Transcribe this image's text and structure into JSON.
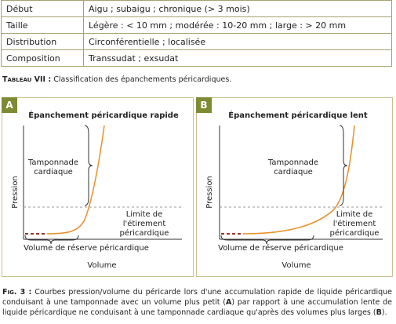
{
  "table": {
    "rows": [
      [
        "Début",
        "Aigu ; subaigu ; chronique (> 3 mois)"
      ],
      [
        "Taille",
        "Légère : < 10 mm ; modérée : 10-20 mm ; large : > 20 mm"
      ],
      [
        "Distribution",
        "Circonférentielle ; localisée"
      ],
      [
        "Composition",
        "Transsudat ; exsudat"
      ]
    ],
    "caption": {
      "label": "Tableau VII :",
      "text": "Classification des épanchements péricardiques."
    }
  },
  "figure": {
    "panels": [
      {
        "label": "A",
        "title": "Épanchement péricardique rapide",
        "y_label": "Pression",
        "x_label": "Volume",
        "tamponade": [
          "Tamponnade",
          "cardiaque"
        ],
        "limit": [
          "Limite de",
          "l'étirement",
          "péricardique"
        ],
        "reserve": "Volume de réserve péricardique"
      },
      {
        "label": "B",
        "title": "Épanchement péricardique lent",
        "y_label": "Pression",
        "x_label": "Volume",
        "tamponade": [
          "Tamponnade",
          "cardiaque"
        ],
        "limit": [
          "Limite de",
          "l'étirement",
          "péricardique"
        ],
        "reserve": "Volume de réserve péricardique"
      }
    ],
    "caption": {
      "label": "Fig. 3 :",
      "parts": [
        "Courbes pression/volume du péricarde lors d'une accumulation rapide de liquide péricardique conduisant à une tamponnade avec un volume plus petit (",
        "A",
        ") par rapport à une accumulation lente de liquide péricardique ne conduisant à une tamponnade cardiaque qu'après des volumes plus larges (",
        "B",
        ")."
      ]
    }
  }
}
